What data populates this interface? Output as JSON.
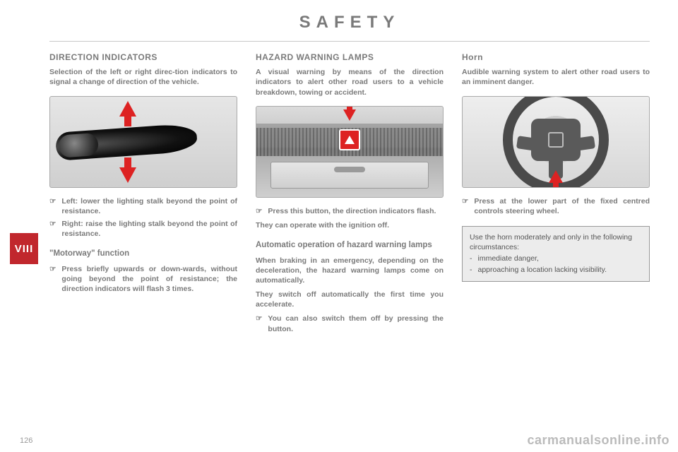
{
  "header": {
    "title": "SAFETY"
  },
  "side_tab": {
    "label": "VIII"
  },
  "page_number": "126",
  "watermark": "carmanualsonline.info",
  "col1": {
    "heading": "DIRECTION INDICATORS",
    "intro": "Selection of the left or right direc-tion indicators to signal a change of direction of the vehicle.",
    "bullets": [
      "Left: lower the lighting stalk beyond the point of resistance.",
      "Right: raise the lighting stalk beyond the point of resistance."
    ],
    "sub_heading": "\"Motorway\" function",
    "sub_bullet": "Press briefly upwards or down-wards, without going beyond the point of resistance; the direction indicators will flash 3 times."
  },
  "col2": {
    "heading": "HAZARD WARNING LAMPS",
    "intro": "A visual warning by means of the direction indicators to alert other road users to a vehicle breakdown, towing or accident.",
    "bullet": "Press this button, the direction indicators flash.",
    "line1": "They can operate with the ignition off.",
    "sub_heading": "Automatic operation of hazard warning lamps",
    "para1": "When braking in an emergency, depending on the deceleration, the hazard warning lamps come on automatically.",
    "para2": "They switch off automatically the first time you accelerate.",
    "bullet2": "You can also switch them off by pressing the button."
  },
  "col3": {
    "heading": "Horn",
    "intro": "Audible warning system to alert other road users to an imminent danger.",
    "bullet": "Press at the lower part of the fixed centred controls steering wheel.",
    "infobox": {
      "lead": "Use the horn moderately and only in the following circumstances:",
      "items": [
        "immediate danger,",
        "approaching a location lacking visibility."
      ]
    }
  }
}
